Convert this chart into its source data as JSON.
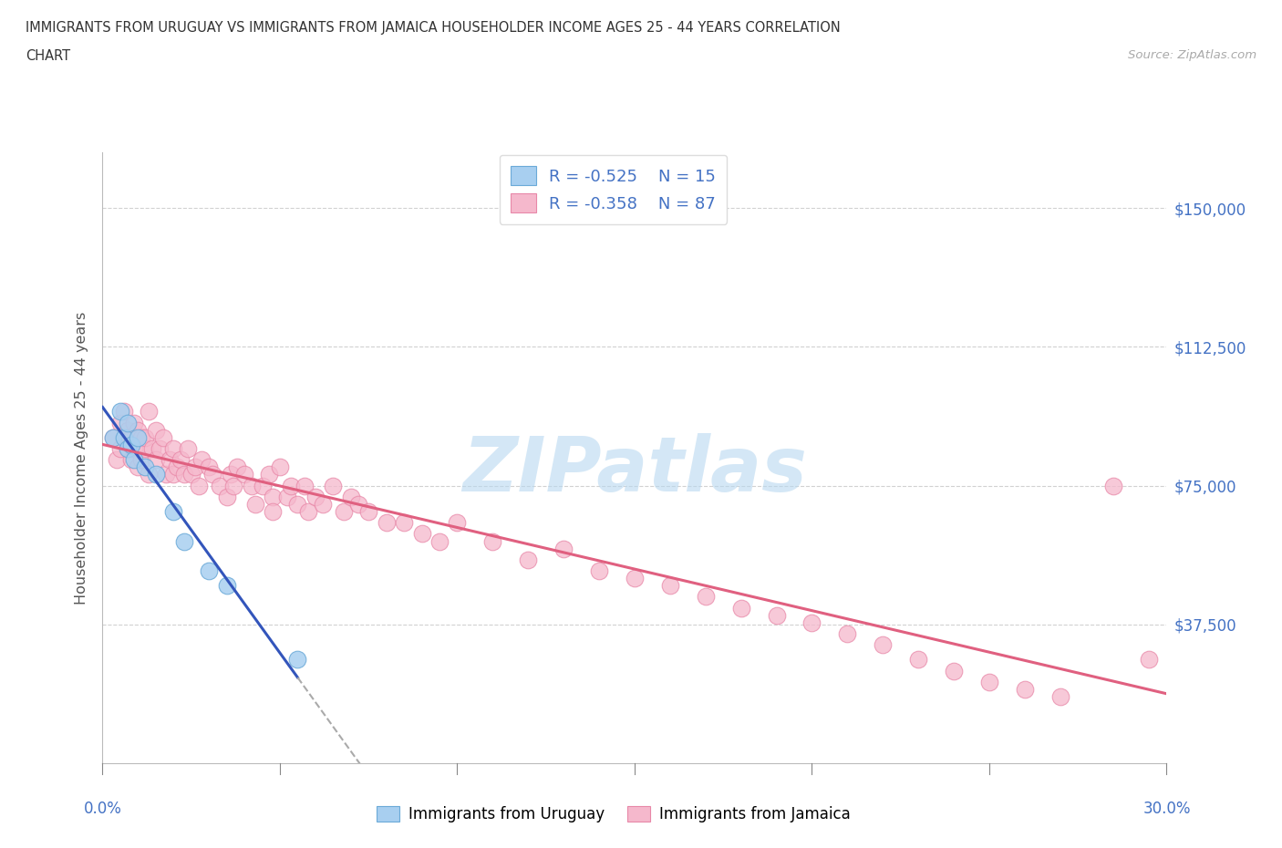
{
  "title_line1": "IMMIGRANTS FROM URUGUAY VS IMMIGRANTS FROM JAMAICA HOUSEHOLDER INCOME AGES 25 - 44 YEARS CORRELATION",
  "title_line2": "CHART",
  "source": "Source: ZipAtlas.com",
  "ylabel": "Householder Income Ages 25 - 44 years",
  "xlim": [
    0.0,
    0.3
  ],
  "ylim": [
    0,
    165000
  ],
  "yticks": [
    0,
    37500,
    75000,
    112500,
    150000
  ],
  "ytick_labels": [
    "",
    "$37,500",
    "$75,000",
    "$112,500",
    "$150,000"
  ],
  "xtick_positions": [
    0.0,
    0.05,
    0.1,
    0.15,
    0.2,
    0.25,
    0.3
  ],
  "R_uruguay": -0.525,
  "N_uruguay": 15,
  "R_jamaica": -0.358,
  "N_jamaica": 87,
  "color_uruguay": "#a8cff0",
  "color_jamaica": "#f5b8cc",
  "edge_uruguay": "#6baad8",
  "edge_jamaica": "#e888a8",
  "trendline_color_uruguay": "#3355bb",
  "trendline_color_jamaica": "#e06080",
  "trendline_dash_color": "#aaaaaa",
  "watermark_color": "#b8d8f0",
  "grid_color": "#cccccc",
  "label_color": "#4472c4",
  "title_color": "#333333",
  "source_color": "#aaaaaa",
  "ylabel_color": "#555555",
  "uruguay_x": [
    0.003,
    0.005,
    0.006,
    0.007,
    0.007,
    0.008,
    0.009,
    0.01,
    0.012,
    0.015,
    0.02,
    0.023,
    0.03,
    0.035,
    0.055
  ],
  "uruguay_y": [
    88000,
    95000,
    88000,
    92000,
    85000,
    86000,
    82000,
    88000,
    80000,
    78000,
    68000,
    60000,
    52000,
    48000,
    28000
  ],
  "jamaica_x": [
    0.003,
    0.004,
    0.005,
    0.005,
    0.006,
    0.007,
    0.007,
    0.008,
    0.008,
    0.009,
    0.009,
    0.01,
    0.01,
    0.011,
    0.011,
    0.012,
    0.012,
    0.013,
    0.013,
    0.014,
    0.015,
    0.015,
    0.016,
    0.017,
    0.018,
    0.019,
    0.02,
    0.02,
    0.021,
    0.022,
    0.023,
    0.024,
    0.025,
    0.026,
    0.027,
    0.028,
    0.03,
    0.031,
    0.033,
    0.035,
    0.036,
    0.037,
    0.038,
    0.04,
    0.042,
    0.043,
    0.045,
    0.047,
    0.048,
    0.05,
    0.052,
    0.053,
    0.055,
    0.057,
    0.058,
    0.06,
    0.062,
    0.065,
    0.068,
    0.07,
    0.072,
    0.075,
    0.08,
    0.085,
    0.09,
    0.095,
    0.1,
    0.11,
    0.12,
    0.13,
    0.14,
    0.15,
    0.16,
    0.17,
    0.18,
    0.19,
    0.2,
    0.21,
    0.22,
    0.23,
    0.24,
    0.25,
    0.26,
    0.27,
    0.285,
    0.295,
    0.048
  ],
  "jamaica_y": [
    88000,
    82000,
    92000,
    85000,
    95000,
    90000,
    85000,
    88000,
    82000,
    92000,
    85000,
    90000,
    80000,
    88000,
    82000,
    85000,
    88000,
    95000,
    78000,
    85000,
    90000,
    82000,
    85000,
    88000,
    78000,
    82000,
    85000,
    78000,
    80000,
    82000,
    78000,
    85000,
    78000,
    80000,
    75000,
    82000,
    80000,
    78000,
    75000,
    72000,
    78000,
    75000,
    80000,
    78000,
    75000,
    70000,
    75000,
    78000,
    72000,
    80000,
    72000,
    75000,
    70000,
    75000,
    68000,
    72000,
    70000,
    75000,
    68000,
    72000,
    70000,
    68000,
    65000,
    65000,
    62000,
    60000,
    65000,
    60000,
    55000,
    58000,
    52000,
    50000,
    48000,
    45000,
    42000,
    40000,
    38000,
    35000,
    32000,
    28000,
    25000,
    22000,
    20000,
    18000,
    75000,
    28000,
    68000
  ]
}
